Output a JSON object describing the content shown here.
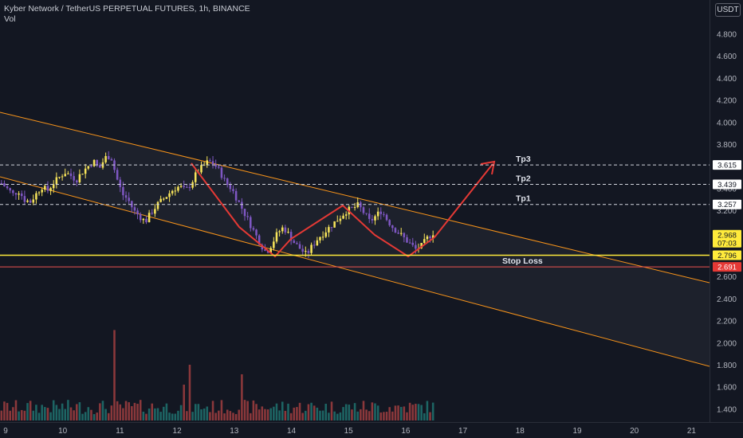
{
  "header": {
    "title": "Kyber Network / TetherUS PERPETUAL FUTURES, 1h, BINANCE",
    "volume_label": "Vol"
  },
  "currency_badge": "USDT",
  "chart_data": {
    "type": "candlestick",
    "symbol": "Kyber Network / TetherUS PERPETUAL FUTURES",
    "interval": "1h",
    "exchange": "BINANCE",
    "y_ticks": [
      "4.800",
      "4.600",
      "4.400",
      "4.200",
      "4.000",
      "3.800",
      "3.600",
      "3.400",
      "3.200",
      "3.000",
      "2.800",
      "2.600",
      "2.400",
      "2.200",
      "2.000",
      "1.800",
      "1.600",
      "1.400"
    ],
    "ylim": [
      1.35,
      4.95
    ],
    "x_ticks": [
      "9",
      "10",
      "11",
      "12",
      "13",
      "14",
      "15",
      "16",
      "17",
      "18",
      "19",
      "20",
      "21"
    ],
    "price_path": [
      3.45,
      3.4,
      3.35,
      3.38,
      3.3,
      3.28,
      3.35,
      3.42,
      3.38,
      3.45,
      3.5,
      3.55,
      3.52,
      3.48,
      3.55,
      3.6,
      3.65,
      3.58,
      3.68,
      3.7,
      3.5,
      3.35,
      3.3,
      3.2,
      3.15,
      3.1,
      3.18,
      3.25,
      3.3,
      3.35,
      3.4,
      3.42,
      3.38,
      3.45,
      3.55,
      3.6,
      3.65,
      3.62,
      3.55,
      3.45,
      3.4,
      3.3,
      3.2,
      3.1,
      3.0,
      2.9,
      2.82,
      2.9,
      3.0,
      3.05,
      2.98,
      2.9,
      2.85,
      2.8,
      2.88,
      2.95,
      3.0,
      3.05,
      3.1,
      3.15,
      3.2,
      3.22,
      3.25,
      3.18,
      3.1,
      3.15,
      3.2,
      3.12,
      3.05,
      3.0,
      2.95,
      2.9,
      2.85,
      2.88,
      2.95,
      3.0
    ],
    "volume_wide_spike": 2.22,
    "levels": [
      {
        "name": "Tp3",
        "value": 3.615,
        "label": "3.615"
      },
      {
        "name": "Tp2",
        "value": 3.439,
        "label": "3.439"
      },
      {
        "name": "Tp1",
        "value": 3.257,
        "label": "3.257"
      },
      {
        "name": "",
        "value": 2.796,
        "label": "2.796"
      },
      {
        "name": "Stop Loss",
        "value": 2.691,
        "label": "2.691"
      }
    ],
    "last_price": {
      "value": 2.968,
      "label": "2.968",
      "countdown": "07:03"
    },
    "colors": {
      "up": "#f6e35a",
      "down": "#7e57c2",
      "channel": "#f7931a",
      "arrow": "#e53935",
      "support": "#ffeb3b",
      "stoploss": "#ef5350"
    }
  },
  "annotations": {
    "tp3": "Tp3",
    "tp2": "Tp2",
    "tp1": "Tp1",
    "stop_loss": "Stop Loss"
  }
}
